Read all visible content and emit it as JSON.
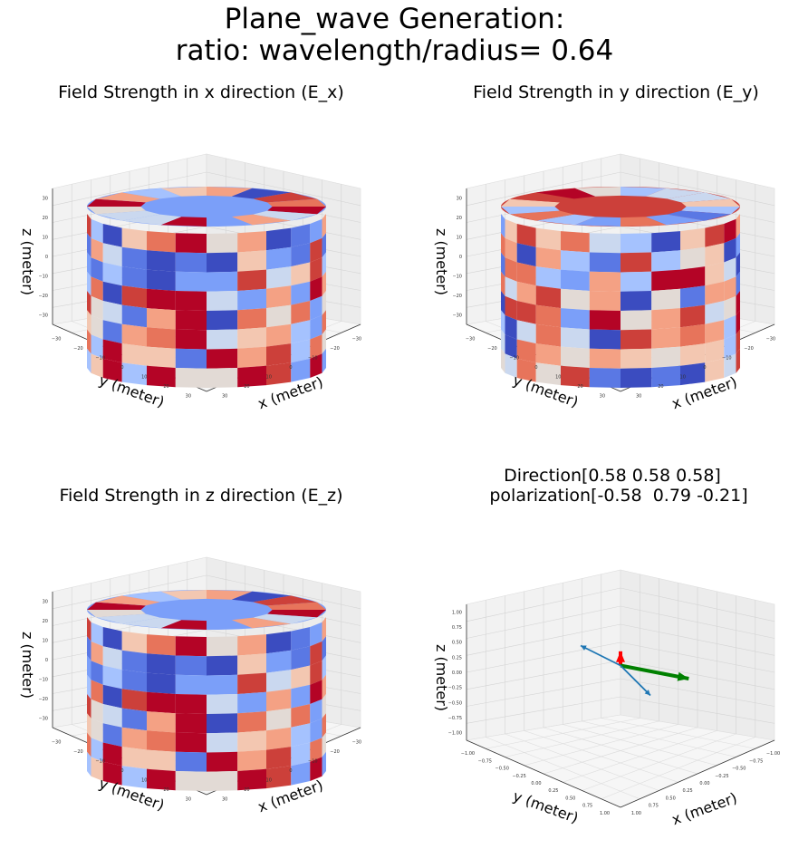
{
  "figure": {
    "title_line1": "Plane_wave Generation:",
    "title_line2": "ratio: wavelength/radius= 0.64"
  },
  "chart_data": [
    {
      "type": "surface3d",
      "title": "Field Strength in x direction (E_x)",
      "xlabel": "x (meter)",
      "ylabel": "y (meter)",
      "zlabel": "z (meter)",
      "x_ticks": [
        "30",
        "20",
        "10",
        "0",
        "−10",
        "−20",
        "−30"
      ],
      "y_ticks": [
        "−30",
        "−20",
        "−10",
        "0",
        "10",
        "20",
        "30"
      ],
      "z_ticks": [
        "30",
        "20",
        "10",
        "0",
        "−10",
        "−20",
        "−30"
      ],
      "colormap": "coolwarm",
      "seed": 3
    },
    {
      "type": "surface3d",
      "title": "Field Strength in y direction (E_y)",
      "xlabel": "x (meter)",
      "ylabel": "y (meter)",
      "zlabel": "z (meter)",
      "x_ticks": [
        "30",
        "20",
        "10",
        "0",
        "−10",
        "−20",
        "−30"
      ],
      "y_ticks": [
        "−30",
        "−20",
        "−10",
        "0",
        "10",
        "20",
        "30"
      ],
      "z_ticks": [
        "30",
        "20",
        "10",
        "0",
        "−10",
        "−20",
        "−30"
      ],
      "colormap": "coolwarm",
      "seed": 11
    },
    {
      "type": "surface3d",
      "title": "Field Strength in z direction (E_z)",
      "xlabel": "x (meter)",
      "ylabel": "y (meter)",
      "zlabel": "z (meter)",
      "x_ticks": [
        "30",
        "20",
        "10",
        "0",
        "−10",
        "−20",
        "−30"
      ],
      "y_ticks": [
        "−30",
        "−20",
        "−10",
        "0",
        "10",
        "20",
        "30"
      ],
      "z_ticks": [
        "30",
        "20",
        "10",
        "0",
        "−10",
        "−20",
        "−30"
      ],
      "colormap": "coolwarm",
      "seed": 3
    },
    {
      "type": "quiver3d",
      "title_line1": "Direction[0.58 0.58 0.58]",
      "title_line2": "polarization[-0.58  0.79 -0.21]",
      "xlabel": "x (meter)",
      "ylabel": "y (meter)",
      "zlabel": "z (meter)",
      "x_ticks": [
        "1.00",
        "0.75",
        "0.50",
        "0.25",
        "0.00",
        "−0.25",
        "−0.50",
        "−0.75",
        "−1.00"
      ],
      "y_ticks": [
        "−1.00",
        "−0.75",
        "−0.50",
        "−0.25",
        "0.00",
        "0.25",
        "0.50",
        "0.75",
        "1.00"
      ],
      "z_ticks": [
        "1.00",
        "0.75",
        "0.50",
        "0.25",
        "0.00",
        "−0.25",
        "−0.50",
        "−0.75",
        "−1.00"
      ],
      "vectors": [
        {
          "vector": [
            0.58,
            0.58,
            0.58
          ],
          "color": "#ff0000"
        },
        {
          "vector": [
            -0.58,
            0.79,
            -0.21
          ],
          "color": "#008000"
        },
        {
          "vector": [
            0.4,
            -0.4,
            0.4
          ],
          "color": "#1f77b4"
        },
        {
          "vector": [
            -0.3,
            0.3,
            -0.6
          ],
          "color": "#1f77b4"
        }
      ]
    }
  ]
}
